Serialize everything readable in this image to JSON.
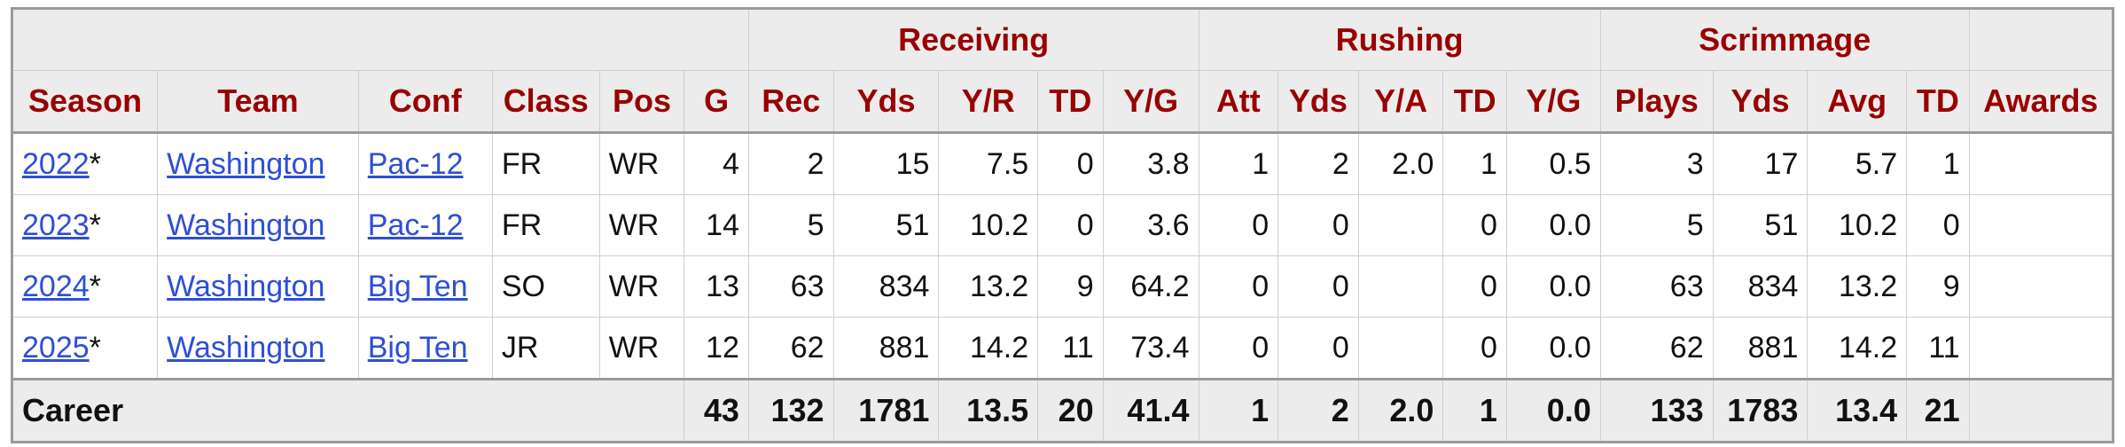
{
  "groups": {
    "receiving": "Receiving",
    "rushing": "Rushing",
    "scrimmage": "Scrimmage"
  },
  "headers": [
    "Season",
    "Team",
    "Conf",
    "Class",
    "Pos",
    "G",
    "Rec",
    "Yds",
    "Y/R",
    "TD",
    "Y/G",
    "Att",
    "Yds",
    "Y/A",
    "TD",
    "Y/G",
    "Plays",
    "Yds",
    "Avg",
    "TD",
    "Awards"
  ],
  "rows": [
    {
      "season": "2022",
      "mark": "*",
      "team": "Washington",
      "conf": "Pac-12",
      "class": "FR",
      "pos": "WR",
      "g": "4",
      "rec": "2",
      "rec_yds": "15",
      "yr": "7.5",
      "rec_td": "0",
      "rec_yg": "3.8",
      "att": "1",
      "rush_yds": "2",
      "ya": "2.0",
      "rush_td": "1",
      "rush_yg": "0.5",
      "plays": "3",
      "scrim_yds": "17",
      "avg": "5.7",
      "scrim_td": "1",
      "awards": ""
    },
    {
      "season": "2023",
      "mark": "*",
      "team": "Washington",
      "conf": "Pac-12",
      "class": "FR",
      "pos": "WR",
      "g": "14",
      "rec": "5",
      "rec_yds": "51",
      "yr": "10.2",
      "rec_td": "0",
      "rec_yg": "3.6",
      "att": "0",
      "rush_yds": "0",
      "ya": "",
      "rush_td": "0",
      "rush_yg": "0.0",
      "plays": "5",
      "scrim_yds": "51",
      "avg": "10.2",
      "scrim_td": "0",
      "awards": ""
    },
    {
      "season": "2024",
      "mark": "*",
      "team": "Washington",
      "conf": "Big Ten",
      "class": "SO",
      "pos": "WR",
      "g": "13",
      "rec": "63",
      "rec_yds": "834",
      "yr": "13.2",
      "rec_td": "9",
      "rec_yg": "64.2",
      "att": "0",
      "rush_yds": "0",
      "ya": "",
      "rush_td": "0",
      "rush_yg": "0.0",
      "plays": "63",
      "scrim_yds": "834",
      "avg": "13.2",
      "scrim_td": "9",
      "awards": ""
    },
    {
      "season": "2025",
      "mark": "*",
      "team": "Washington",
      "conf": "Big Ten",
      "class": "JR",
      "pos": "WR",
      "g": "12",
      "rec": "62",
      "rec_yds": "881",
      "yr": "14.2",
      "rec_td": "11",
      "rec_yg": "73.4",
      "att": "0",
      "rush_yds": "0",
      "ya": "",
      "rush_td": "0",
      "rush_yg": "0.0",
      "plays": "62",
      "scrim_yds": "881",
      "avg": "14.2",
      "scrim_td": "11",
      "awards": ""
    }
  ],
  "career": {
    "label": "Career",
    "g": "43",
    "rec": "132",
    "rec_yds": "1781",
    "yr": "13.5",
    "rec_td": "20",
    "rec_yg": "41.4",
    "att": "1",
    "rush_yds": "2",
    "ya": "2.0",
    "rush_td": "1",
    "rush_yg": "0.0",
    "plays": "133",
    "scrim_yds": "1783",
    "avg": "13.4",
    "scrim_td": "21",
    "awards": ""
  }
}
